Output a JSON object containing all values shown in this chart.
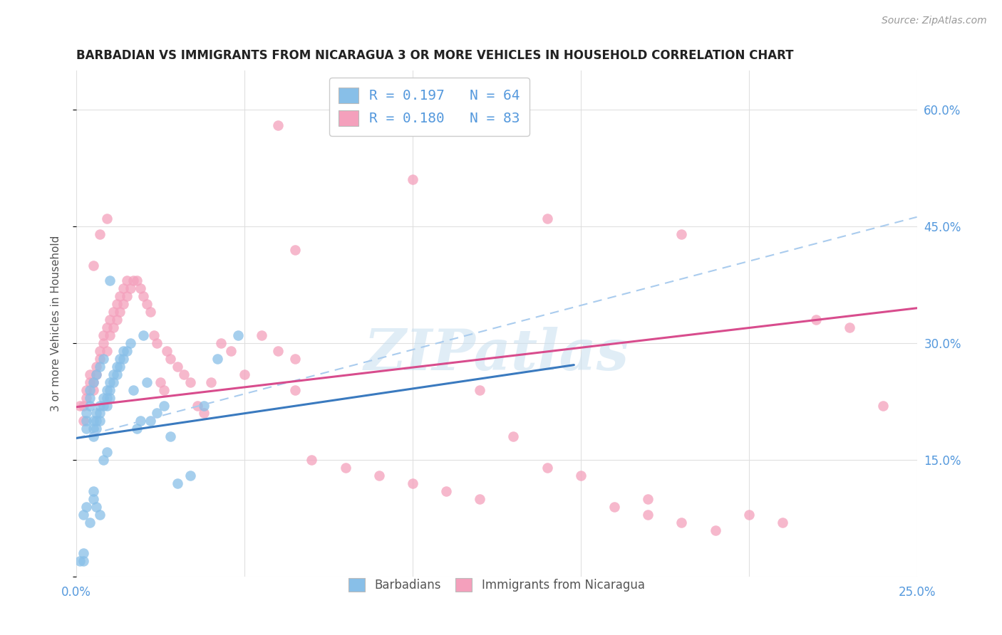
{
  "title": "BARBADIAN VS IMMIGRANTS FROM NICARAGUA 3 OR MORE VEHICLES IN HOUSEHOLD CORRELATION CHART",
  "source": "Source: ZipAtlas.com",
  "ylabel": "3 or more Vehicles in Household",
  "x_min": 0.0,
  "x_max": 0.25,
  "y_min": 0.0,
  "y_max": 0.65,
  "x_tick_positions": [
    0.0,
    0.05,
    0.1,
    0.15,
    0.2,
    0.25
  ],
  "x_tick_labels": [
    "0.0%",
    "",
    "",
    "",
    "",
    "25.0%"
  ],
  "y_tick_positions": [
    0.0,
    0.15,
    0.3,
    0.45,
    0.6
  ],
  "y_tick_labels_right": [
    "",
    "15.0%",
    "30.0%",
    "45.0%",
    "60.0%"
  ],
  "legend_line1": "R = 0.197   N = 64",
  "legend_line2": "R = 0.180   N = 83",
  "blue_color": "#88bfe8",
  "pink_color": "#f4a0bc",
  "blue_line_color": "#3a7abf",
  "pink_line_color": "#d84c8d",
  "dashed_line_color": "#aaccee",
  "background_color": "#ffffff",
  "watermark_text": "ZIPatlas",
  "blue_line_x0": 0.0,
  "blue_line_y0": 0.178,
  "blue_line_x1": 0.148,
  "blue_line_y1": 0.272,
  "pink_line_x0": 0.0,
  "pink_line_y0": 0.218,
  "pink_line_x1": 0.25,
  "pink_line_y1": 0.345,
  "dashed_line_x0": 0.0,
  "dashed_line_y0": 0.178,
  "dashed_line_x1": 0.25,
  "dashed_line_y1": 0.462,
  "barb_x": [
    0.001,
    0.002,
    0.002,
    0.003,
    0.003,
    0.003,
    0.004,
    0.004,
    0.004,
    0.005,
    0.005,
    0.005,
    0.005,
    0.006,
    0.006,
    0.006,
    0.006,
    0.007,
    0.007,
    0.007,
    0.007,
    0.008,
    0.008,
    0.008,
    0.009,
    0.009,
    0.009,
    0.01,
    0.01,
    0.01,
    0.011,
    0.011,
    0.012,
    0.012,
    0.013,
    0.013,
    0.014,
    0.014,
    0.015,
    0.016,
    0.017,
    0.018,
    0.019,
    0.02,
    0.021,
    0.022,
    0.024,
    0.026,
    0.028,
    0.03,
    0.034,
    0.038,
    0.042,
    0.048,
    0.002,
    0.003,
    0.004,
    0.005,
    0.005,
    0.006,
    0.007,
    0.008,
    0.009,
    0.01
  ],
  "barb_y": [
    0.02,
    0.02,
    0.03,
    0.19,
    0.2,
    0.21,
    0.22,
    0.23,
    0.24,
    0.18,
    0.19,
    0.2,
    0.25,
    0.19,
    0.2,
    0.21,
    0.26,
    0.2,
    0.21,
    0.22,
    0.27,
    0.22,
    0.23,
    0.28,
    0.22,
    0.23,
    0.24,
    0.23,
    0.24,
    0.25,
    0.25,
    0.26,
    0.26,
    0.27,
    0.27,
    0.28,
    0.28,
    0.29,
    0.29,
    0.3,
    0.24,
    0.19,
    0.2,
    0.31,
    0.25,
    0.2,
    0.21,
    0.22,
    0.18,
    0.12,
    0.13,
    0.22,
    0.28,
    0.31,
    0.08,
    0.09,
    0.07,
    0.1,
    0.11,
    0.09,
    0.08,
    0.15,
    0.16,
    0.38
  ],
  "nic_x": [
    0.001,
    0.002,
    0.002,
    0.003,
    0.003,
    0.004,
    0.004,
    0.005,
    0.005,
    0.006,
    0.006,
    0.007,
    0.007,
    0.008,
    0.008,
    0.009,
    0.009,
    0.01,
    0.01,
    0.011,
    0.011,
    0.012,
    0.012,
    0.013,
    0.013,
    0.014,
    0.014,
    0.015,
    0.015,
    0.016,
    0.017,
    0.018,
    0.019,
    0.02,
    0.021,
    0.022,
    0.023,
    0.024,
    0.025,
    0.026,
    0.027,
    0.028,
    0.03,
    0.032,
    0.034,
    0.036,
    0.038,
    0.04,
    0.043,
    0.046,
    0.05,
    0.055,
    0.06,
    0.065,
    0.07,
    0.08,
    0.09,
    0.1,
    0.11,
    0.12,
    0.065,
    0.13,
    0.14,
    0.15,
    0.16,
    0.17,
    0.18,
    0.19,
    0.2,
    0.21,
    0.22,
    0.23,
    0.24,
    0.005,
    0.007,
    0.009,
    0.06,
    0.1,
    0.14,
    0.18,
    0.065,
    0.12,
    0.17
  ],
  "nic_y": [
    0.22,
    0.2,
    0.22,
    0.23,
    0.24,
    0.25,
    0.26,
    0.24,
    0.25,
    0.26,
    0.27,
    0.28,
    0.29,
    0.3,
    0.31,
    0.32,
    0.29,
    0.33,
    0.31,
    0.34,
    0.32,
    0.35,
    0.33,
    0.36,
    0.34,
    0.37,
    0.35,
    0.36,
    0.38,
    0.37,
    0.38,
    0.38,
    0.37,
    0.36,
    0.35,
    0.34,
    0.31,
    0.3,
    0.25,
    0.24,
    0.29,
    0.28,
    0.27,
    0.26,
    0.25,
    0.22,
    0.21,
    0.25,
    0.3,
    0.29,
    0.26,
    0.31,
    0.29,
    0.28,
    0.15,
    0.14,
    0.13,
    0.12,
    0.11,
    0.1,
    0.42,
    0.18,
    0.14,
    0.13,
    0.09,
    0.08,
    0.07,
    0.06,
    0.08,
    0.07,
    0.33,
    0.32,
    0.22,
    0.4,
    0.44,
    0.46,
    0.58,
    0.51,
    0.46,
    0.44,
    0.24,
    0.24,
    0.1
  ]
}
